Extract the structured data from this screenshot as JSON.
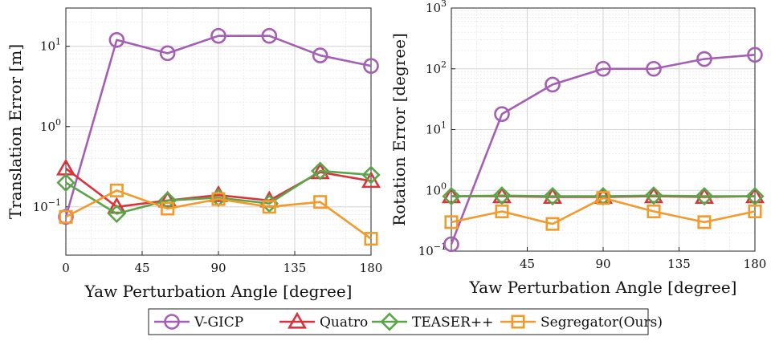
{
  "chart_data": [
    {
      "type": "line",
      "y_scale": "log",
      "ylabel": "Translation Error [m]",
      "xlabel": "Yaw Perturbation Angle [degree]",
      "xlim": [
        0,
        180
      ],
      "ylim": [
        0.025,
        30
      ],
      "grid": true,
      "x_ticks": [
        0,
        45,
        90,
        135,
        180
      ],
      "y_ticks": [
        {
          "value": 0.1,
          "base": "10",
          "exp": "−1"
        },
        {
          "value": 1,
          "base": "10",
          "exp": "0"
        },
        {
          "value": 10,
          "base": "10",
          "exp": "1"
        }
      ],
      "x": [
        0,
        30,
        60,
        90,
        120,
        150,
        180
      ],
      "series": [
        {
          "name": "V-GICP",
          "values": [
            0.075,
            12,
            8.2,
            13.5,
            13.5,
            7.7,
            5.7
          ]
        },
        {
          "name": "Quatro",
          "values": [
            0.3,
            0.1,
            0.12,
            0.14,
            0.12,
            0.27,
            0.21
          ]
        },
        {
          "name": "TEASER++",
          "values": [
            0.2,
            0.082,
            0.12,
            0.13,
            0.11,
            0.28,
            0.25
          ]
        },
        {
          "name": "Segregator(Ours)",
          "values": [
            0.075,
            0.16,
            0.095,
            0.125,
            0.1,
            0.115,
            0.04
          ]
        }
      ]
    },
    {
      "type": "line",
      "y_scale": "log",
      "ylabel": "Rotation Error [degree]",
      "xlabel": "Yaw Perturbation Angle [degree]",
      "xlim": [
        0,
        180
      ],
      "ylim": [
        0.1,
        1000
      ],
      "grid": true,
      "x_ticks": [
        45,
        90,
        135,
        180
      ],
      "y_ticks": [
        {
          "value": 0.1,
          "base": "10",
          "exp": "−1"
        },
        {
          "value": 1,
          "base": "10",
          "exp": "0"
        },
        {
          "value": 10,
          "base": "10",
          "exp": "1"
        },
        {
          "value": 100,
          "base": "10",
          "exp": "2"
        },
        {
          "value": 1000,
          "base": "10",
          "exp": "3"
        }
      ],
      "x": [
        0,
        30,
        60,
        90,
        120,
        150,
        180
      ],
      "series": [
        {
          "name": "V-GICP",
          "values": [
            0.13,
            18,
            55,
            100,
            100,
            145,
            170
          ]
        },
        {
          "name": "Quatro",
          "values": [
            0.8,
            0.8,
            0.78,
            0.78,
            0.8,
            0.78,
            0.8
          ]
        },
        {
          "name": "TEASER++",
          "values": [
            0.8,
            0.82,
            0.8,
            0.8,
            0.82,
            0.8,
            0.8
          ]
        },
        {
          "name": "Segregator(Ours)",
          "values": [
            0.3,
            0.45,
            0.28,
            0.75,
            0.45,
            0.3,
            0.45
          ]
        }
      ]
    }
  ],
  "legend": {
    "position": "bottom-center",
    "items": [
      {
        "label": "V-GICP",
        "color": "#a55eb5",
        "marker": "circle"
      },
      {
        "label": "Quatro",
        "color": "#d9343b",
        "marker": "triangle"
      },
      {
        "label": "TEASER++",
        "color": "#5aa54a",
        "marker": "diamond"
      },
      {
        "label": "Segregator(Ours)",
        "color": "#f39a2b",
        "marker": "square"
      }
    ]
  }
}
